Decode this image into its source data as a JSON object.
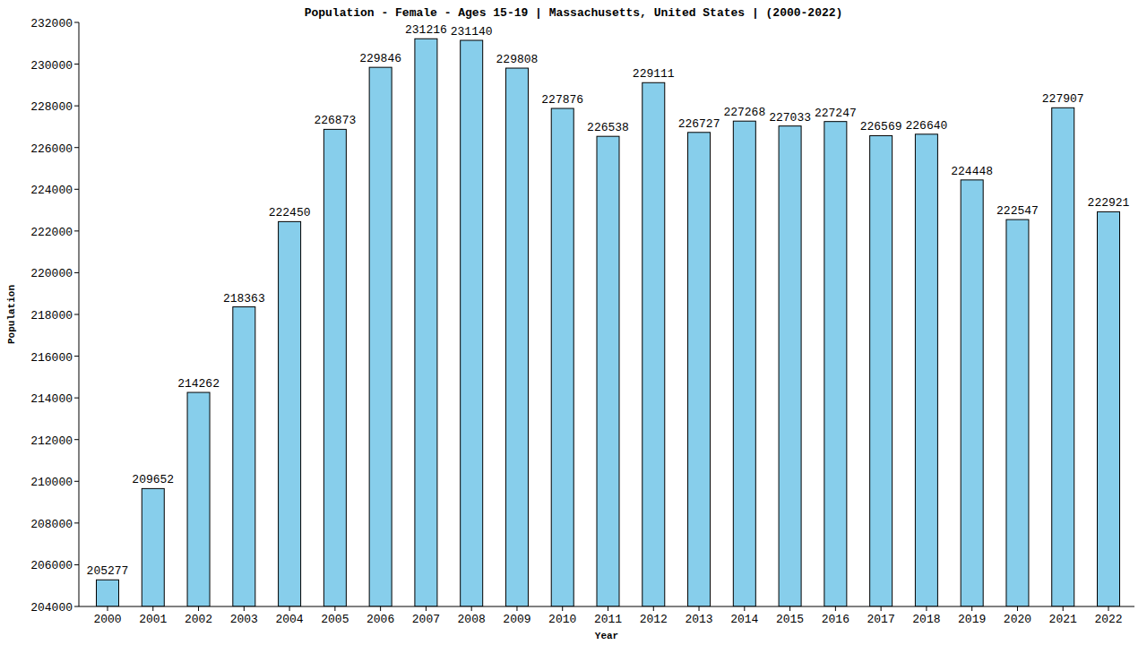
{
  "chart_data": {
    "type": "bar",
    "title": "Population - Female - Ages 15-19 | Massachusetts, United States |  (2000-2022)",
    "x_label": "Year",
    "y_label": "Population",
    "categories": [
      "2000",
      "2001",
      "2002",
      "2003",
      "2004",
      "2005",
      "2006",
      "2007",
      "2008",
      "2009",
      "2010",
      "2011",
      "2012",
      "2013",
      "2014",
      "2015",
      "2016",
      "2017",
      "2018",
      "2019",
      "2020",
      "2021",
      "2022"
    ],
    "values": [
      205277,
      209652,
      214262,
      218363,
      222450,
      226873,
      229846,
      231216,
      231140,
      229808,
      227876,
      226538,
      229111,
      226727,
      227268,
      227033,
      227247,
      226569,
      226640,
      224448,
      222547,
      227907,
      222921
    ],
    "color": "#87ceeb",
    "ylim": [
      204000,
      232000
    ],
    "yticks": [
      204000,
      206000,
      208000,
      210000,
      212000,
      214000,
      216000,
      218000,
      220000,
      222000,
      224000,
      226000,
      228000,
      230000,
      232000
    ],
    "grid": false,
    "data_labels": true
  }
}
